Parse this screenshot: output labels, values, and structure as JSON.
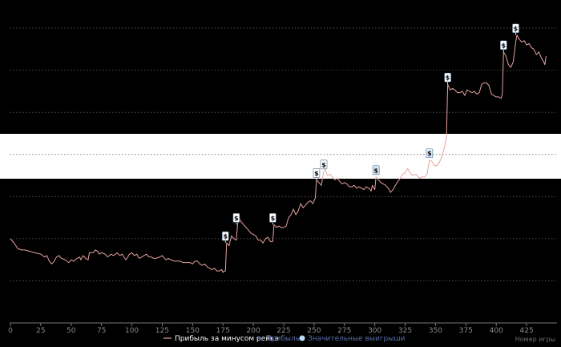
{
  "chart_data": {
    "type": "line",
    "xlabel": "Номер игры",
    "ylabel": "",
    "xlim": [
      0,
      450
    ],
    "ylim": [
      -90,
      140
    ],
    "x_ticks": [
      0,
      25,
      50,
      75,
      100,
      125,
      150,
      175,
      200,
      225,
      250,
      275,
      300,
      325,
      350,
      375,
      400,
      425
    ],
    "y_gridlines": [
      -60,
      -30,
      0,
      30,
      60,
      90,
      120
    ],
    "grid": "horizontal-dashed",
    "legend_position": "bottom-center",
    "colors": {
      "background": "#000000",
      "line_rake": "#e6a3a0",
      "line_profit": "#5b6fa8",
      "marker_face": "#ffffff",
      "marker_light": "#dcefff",
      "grid": "#5a5a5a",
      "band": "#ffffff"
    },
    "series": [
      {
        "name": "Прибыль за минусом рейка",
        "style": "line",
        "points": [
          [
            0,
            -30
          ],
          [
            3,
            -33
          ],
          [
            6,
            -37
          ],
          [
            9,
            -38
          ],
          [
            12,
            -38
          ],
          [
            16,
            -39
          ],
          [
            20,
            -40
          ],
          [
            25,
            -41
          ],
          [
            28,
            -43
          ],
          [
            30,
            -42
          ],
          [
            32,
            -46
          ],
          [
            34,
            -48
          ],
          [
            36,
            -46
          ],
          [
            38,
            -43
          ],
          [
            40,
            -42
          ],
          [
            42,
            -44
          ],
          [
            45,
            -45
          ],
          [
            48,
            -47
          ],
          [
            50,
            -45
          ],
          [
            52,
            -46
          ],
          [
            55,
            -44
          ],
          [
            57,
            -43
          ],
          [
            58,
            -45
          ],
          [
            60,
            -42
          ],
          [
            62,
            -44
          ],
          [
            64,
            -45
          ],
          [
            65,
            -40
          ],
          [
            68,
            -40
          ],
          [
            70,
            -38
          ],
          [
            72,
            -39
          ],
          [
            73,
            -41
          ],
          [
            75,
            -40
          ],
          [
            78,
            -41
          ],
          [
            80,
            -43
          ],
          [
            83,
            -41
          ],
          [
            85,
            -42
          ],
          [
            88,
            -40
          ],
          [
            90,
            -42
          ],
          [
            92,
            -41
          ],
          [
            95,
            -45
          ],
          [
            96,
            -44
          ],
          [
            98,
            -41
          ],
          [
            100,
            -40
          ],
          [
            102,
            -42
          ],
          [
            104,
            -41
          ],
          [
            106,
            -44
          ],
          [
            108,
            -43
          ],
          [
            110,
            -42
          ],
          [
            112,
            -41
          ],
          [
            114,
            -43
          ],
          [
            116,
            -43
          ],
          [
            118,
            -44
          ],
          [
            120,
            -44
          ],
          [
            123,
            -43
          ],
          [
            125,
            -42
          ],
          [
            128,
            -45
          ],
          [
            130,
            -44
          ],
          [
            132,
            -45
          ],
          [
            135,
            -46
          ],
          [
            138,
            -46
          ],
          [
            140,
            -46
          ],
          [
            142,
            -47
          ],
          [
            145,
            -47
          ],
          [
            148,
            -47
          ],
          [
            150,
            -48
          ],
          [
            152,
            -46
          ],
          [
            154,
            -46
          ],
          [
            156,
            -48
          ],
          [
            158,
            -49
          ],
          [
            160,
            -48
          ],
          [
            162,
            -50
          ],
          [
            164,
            -51
          ],
          [
            166,
            -52
          ],
          [
            168,
            -51
          ],
          [
            170,
            -53
          ],
          [
            172,
            -53
          ],
          [
            174,
            -52
          ],
          [
            175,
            -54
          ],
          [
            176,
            -53
          ],
          [
            177,
            -53
          ],
          [
            178,
            -33
          ],
          [
            180,
            -35
          ],
          [
            182,
            -28
          ],
          [
            184,
            -30
          ],
          [
            186,
            -31
          ],
          [
            187,
            -20
          ],
          [
            188,
            -15
          ],
          [
            190,
            -18
          ],
          [
            192,
            -20
          ],
          [
            194,
            -22
          ],
          [
            196,
            -24
          ],
          [
            198,
            -26
          ],
          [
            200,
            -27
          ],
          [
            202,
            -28
          ],
          [
            204,
            -31
          ],
          [
            206,
            -31
          ],
          [
            208,
            -33
          ],
          [
            210,
            -30
          ],
          [
            212,
            -29
          ],
          [
            214,
            -32
          ],
          [
            216,
            -32
          ],
          [
            217,
            -20
          ],
          [
            219,
            -22
          ],
          [
            221,
            -21
          ],
          [
            223,
            -22
          ],
          [
            225,
            -22
          ],
          [
            227,
            -21
          ],
          [
            229,
            -15
          ],
          [
            231,
            -13
          ],
          [
            233,
            -9
          ],
          [
            235,
            -13
          ],
          [
            237,
            -10
          ],
          [
            239,
            -5
          ],
          [
            241,
            -8
          ],
          [
            243,
            -6
          ],
          [
            245,
            -4
          ],
          [
            247,
            -3
          ],
          [
            249,
            -5
          ],
          [
            251,
            -1
          ],
          [
            252,
            12
          ],
          [
            254,
            10
          ],
          [
            256,
            8
          ],
          [
            258,
            18
          ],
          [
            259,
            20
          ],
          [
            261,
            15
          ],
          [
            263,
            16
          ],
          [
            265,
            14
          ],
          [
            267,
            12
          ],
          [
            269,
            13
          ],
          [
            271,
            11
          ],
          [
            273,
            9
          ],
          [
            275,
            10
          ],
          [
            277,
            9
          ],
          [
            279,
            7
          ],
          [
            281,
            7
          ],
          [
            283,
            8
          ],
          [
            285,
            6
          ],
          [
            287,
            7
          ],
          [
            289,
            6
          ],
          [
            291,
            5
          ],
          [
            293,
            7
          ],
          [
            295,
            6
          ],
          [
            297,
            4
          ],
          [
            298,
            8
          ],
          [
            300,
            5
          ],
          [
            301,
            14
          ],
          [
            303,
            12
          ],
          [
            305,
            10
          ],
          [
            307,
            9
          ],
          [
            309,
            8
          ],
          [
            311,
            6
          ],
          [
            313,
            3
          ],
          [
            315,
            5
          ],
          [
            317,
            8
          ],
          [
            319,
            11
          ],
          [
            321,
            13
          ],
          [
            323,
            16
          ],
          [
            325,
            17
          ],
          [
            327,
            20
          ],
          [
            329,
            17
          ],
          [
            331,
            15
          ],
          [
            333,
            16
          ],
          [
            335,
            15
          ],
          [
            337,
            13
          ],
          [
            339,
            14
          ],
          [
            341,
            14
          ],
          [
            343,
            16
          ],
          [
            345,
            26
          ],
          [
            347,
            25
          ],
          [
            349,
            22
          ],
          [
            351,
            22
          ],
          [
            353,
            24
          ],
          [
            355,
            28
          ],
          [
            357,
            34
          ],
          [
            359,
            42
          ],
          [
            360,
            80
          ],
          [
            362,
            76
          ],
          [
            364,
            77
          ],
          [
            366,
            76
          ],
          [
            368,
            74
          ],
          [
            370,
            74
          ],
          [
            372,
            75
          ],
          [
            374,
            72
          ],
          [
            376,
            76
          ],
          [
            378,
            75
          ],
          [
            380,
            74
          ],
          [
            382,
            75
          ],
          [
            384,
            73
          ],
          [
            386,
            74
          ],
          [
            388,
            80
          ],
          [
            390,
            81
          ],
          [
            392,
            81
          ],
          [
            394,
            79
          ],
          [
            396,
            73
          ],
          [
            398,
            72
          ],
          [
            400,
            71
          ],
          [
            402,
            71
          ],
          [
            404,
            70
          ],
          [
            405,
            73
          ],
          [
            406,
            103
          ],
          [
            408,
            100
          ],
          [
            410,
            94
          ],
          [
            412,
            92
          ],
          [
            414,
            96
          ],
          [
            416,
            110
          ],
          [
            417,
            115
          ],
          [
            419,
            112
          ],
          [
            421,
            110
          ],
          [
            423,
            111
          ],
          [
            425,
            108
          ],
          [
            427,
            109
          ],
          [
            429,
            106
          ],
          [
            431,
            105
          ],
          [
            433,
            101
          ],
          [
            435,
            103
          ],
          [
            437,
            99
          ],
          [
            439,
            96
          ],
          [
            440,
            94
          ],
          [
            441,
            100
          ]
        ]
      },
      {
        "name": "Прибыль",
        "style": "line",
        "points": []
      },
      {
        "name": "Значительные выигрыши",
        "style": "marker",
        "marker_label": "$",
        "points": [
          [
            177,
            -33
          ],
          [
            186,
            -20
          ],
          [
            216,
            -20
          ],
          [
            252,
            12
          ],
          [
            258,
            18
          ],
          [
            301,
            14
          ],
          [
            345,
            26
          ],
          [
            360,
            80
          ],
          [
            406,
            103
          ],
          [
            416,
            115
          ]
        ]
      }
    ]
  }
}
